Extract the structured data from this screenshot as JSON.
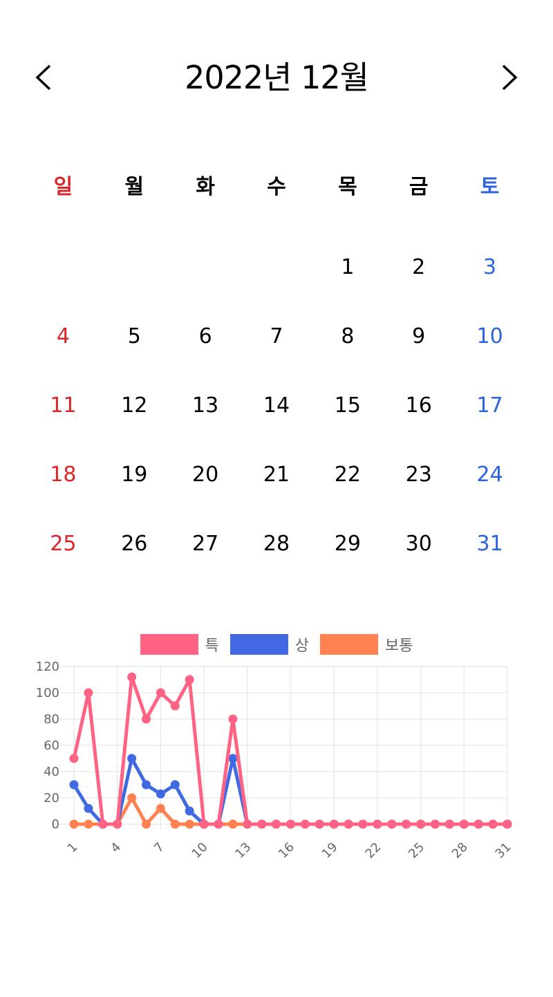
{
  "header": {
    "title": "2022년 12월",
    "prev_icon": "chevron-left-icon",
    "next_icon": "chevron-right-icon"
  },
  "weekdays": [
    "일",
    "월",
    "화",
    "수",
    "목",
    "금",
    "토"
  ],
  "colors": {
    "sunday": "#d9262b",
    "saturday": "#2a63dc",
    "weekday": "#000000"
  },
  "weeks": [
    [
      "",
      "",
      "",
      "",
      "1",
      "2",
      "3"
    ],
    [
      "4",
      "5",
      "6",
      "7",
      "8",
      "9",
      "10"
    ],
    [
      "11",
      "12",
      "13",
      "14",
      "15",
      "16",
      "17"
    ],
    [
      "18",
      "19",
      "20",
      "21",
      "22",
      "23",
      "24"
    ],
    [
      "25",
      "26",
      "27",
      "28",
      "29",
      "30",
      "31"
    ]
  ],
  "chart_data": {
    "type": "line",
    "x": [
      1,
      2,
      3,
      4,
      5,
      6,
      7,
      8,
      9,
      10,
      11,
      12,
      13,
      14,
      15,
      16,
      17,
      18,
      19,
      20,
      21,
      22,
      23,
      24,
      25,
      26,
      27,
      28,
      29,
      30,
      31
    ],
    "x_tick_labels": [
      "1",
      "4",
      "7",
      "10",
      "13",
      "16",
      "19",
      "22",
      "25",
      "28",
      "31"
    ],
    "y_ticks": [
      0,
      20,
      40,
      60,
      80,
      100,
      120
    ],
    "ylim": [
      0,
      120
    ],
    "grid": true,
    "legend_position": "top",
    "series": [
      {
        "name": "특",
        "color": "#ff6384",
        "values": [
          50,
          100,
          0,
          0,
          112,
          80,
          100,
          90,
          110,
          0,
          0,
          80,
          0,
          0,
          0,
          0,
          0,
          0,
          0,
          0,
          0,
          0,
          0,
          0,
          0,
          0,
          0,
          0,
          0,
          0,
          0
        ]
      },
      {
        "name": "상",
        "color": "#4169e1",
        "values": [
          30,
          12,
          0,
          0,
          50,
          30,
          23,
          30,
          10,
          0,
          0,
          50,
          0,
          0,
          0,
          0,
          0,
          0,
          0,
          0,
          0,
          0,
          0,
          0,
          0,
          0,
          0,
          0,
          0,
          0,
          0
        ]
      },
      {
        "name": "보통",
        "color": "#ff8050",
        "values": [
          0,
          0,
          0,
          0,
          20,
          0,
          12,
          0,
          0,
          0,
          0,
          0,
          0,
          0,
          0,
          0,
          0,
          0,
          0,
          0,
          0,
          0,
          0,
          0,
          0,
          0,
          0,
          0,
          0,
          0,
          0
        ]
      }
    ]
  }
}
